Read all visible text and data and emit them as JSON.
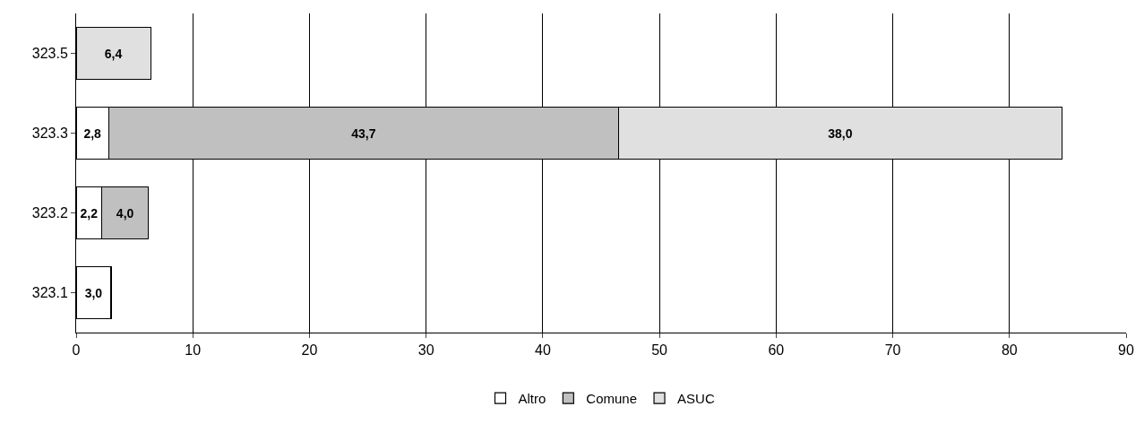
{
  "chart_data": {
    "type": "bar",
    "orientation": "horizontal",
    "stacked": true,
    "categories": [
      "323.5",
      "323.3",
      "323.2",
      "323.1"
    ],
    "series": [
      {
        "name": "Altro",
        "color": "#ffffff",
        "values": [
          null,
          2.8,
          2.2,
          3.0
        ],
        "value_labels": [
          null,
          "2,8",
          "2,2",
          "3,0"
        ]
      },
      {
        "name": "Comune",
        "color": "#c0c0c0",
        "values": [
          null,
          43.7,
          4.0,
          null
        ],
        "value_labels": [
          null,
          "43,7",
          "4,0",
          null
        ]
      },
      {
        "name": "ASUC",
        "color": "#e0e0e0",
        "values": [
          6.4,
          38.0,
          null,
          null
        ],
        "value_labels": [
          "6,4",
          "38,0",
          null,
          null
        ]
      }
    ],
    "xlim": [
      0,
      90
    ],
    "xticks": [
      0,
      10,
      20,
      30,
      40,
      50,
      60,
      70,
      80,
      90
    ],
    "grid": "x",
    "legend": "bottom"
  }
}
